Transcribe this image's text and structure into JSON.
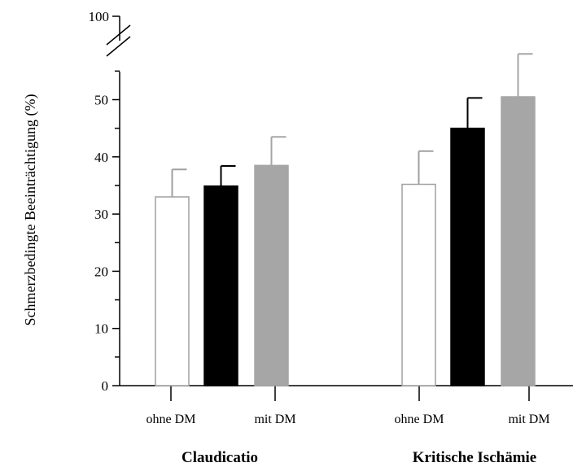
{
  "chart_data": {
    "type": "bar",
    "ylabel": "Schmerzbedingte Beeinträchtigung (%)",
    "xlabel": "",
    "y_ticks": [
      "0",
      "10",
      "20",
      "30",
      "40",
      "50"
    ],
    "y_break_tick": "100",
    "y_break": true,
    "ylim": [
      0,
      55
    ],
    "y_break_top": 100,
    "grid": false,
    "groups": [
      {
        "name": "Claudicatio",
        "sub_labels": [
          "ohne DM",
          "mit DM"
        ],
        "bars": [
          {
            "value": 33.0,
            "error": 4.8,
            "style": "white"
          },
          {
            "value": 34.9,
            "error": 3.5,
            "style": "black"
          },
          {
            "value": 38.5,
            "error": 5.0,
            "style": "gray"
          }
        ]
      },
      {
        "name": "Kritische Ischämie",
        "sub_labels": [
          "ohne DM",
          "mit DM"
        ],
        "bars": [
          {
            "value": 35.2,
            "error": 5.8,
            "style": "white"
          },
          {
            "value": 45.0,
            "error": 5.3,
            "style": "black"
          },
          {
            "value": 50.5,
            "error": 7.5,
            "style": "gray"
          }
        ]
      }
    ],
    "colors": {
      "white_fill": "#ffffff",
      "white_stroke": "#a0a0a0",
      "black_fill": "#000000",
      "gray_fill": "#a6a6a6",
      "gray_error": "#a6a6a6",
      "axis": "#000000"
    }
  }
}
